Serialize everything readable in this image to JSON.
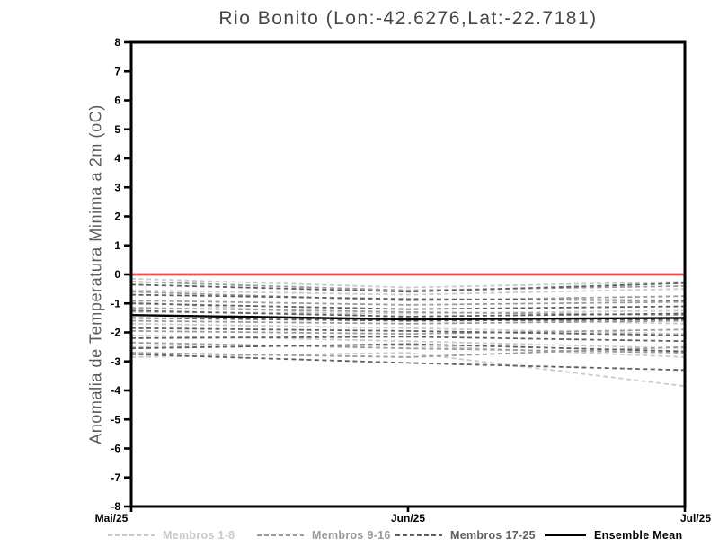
{
  "chart_data": {
    "type": "line",
    "title": "Rio Bonito (Lon:-42.6276,Lat:-22.7181)",
    "ylabel": "Anomalia de Temperatura Minima a 2m (oC)",
    "x_tick_labels": [
      "Mai/25",
      "Jun/25",
      "Jul/25"
    ],
    "ylim": [
      -8,
      8
    ],
    "y_tick_step": 1,
    "grid": false,
    "legend_position": "bottom",
    "axis_color": "#000000",
    "zero_line": {
      "value": 0,
      "color": "#f54848"
    },
    "groups": [
      {
        "label": "Membros 1-8",
        "color": "#c9c9c9",
        "line_style": "dashed",
        "series": [
          [
            -0.15,
            -0.45,
            -0.25
          ],
          [
            -0.55,
            -0.7,
            -0.5
          ],
          [
            -0.95,
            -1.5,
            -1.7
          ],
          [
            -1.3,
            -1.35,
            -1.25
          ],
          [
            -1.7,
            -1.85,
            -2.05
          ],
          [
            -2.1,
            -2.3,
            -2.55
          ],
          [
            -2.5,
            -2.45,
            -2.85
          ],
          [
            -2.85,
            -2.7,
            -3.85
          ]
        ]
      },
      {
        "label": "Membros 9-16",
        "color": "#9a9a9a",
        "line_style": "dashed",
        "series": [
          [
            -0.25,
            -0.55,
            -0.4
          ],
          [
            -0.6,
            -0.9,
            -0.75
          ],
          [
            -0.9,
            -1.05,
            -0.95
          ],
          [
            -1.15,
            -1.3,
            -1.4
          ],
          [
            -1.6,
            -1.7,
            -1.6
          ],
          [
            -1.95,
            -2.05,
            -1.9
          ],
          [
            -2.35,
            -2.55,
            -2.7
          ],
          [
            -2.7,
            -2.85,
            -2.5
          ]
        ]
      },
      {
        "label": "Membros 17-25",
        "color": "#5e5e5e",
        "line_style": "dashed",
        "series": [
          [
            -0.35,
            -0.6,
            -0.3
          ],
          [
            -0.7,
            -0.85,
            -0.9
          ],
          [
            -1.0,
            -1.2,
            -1.1
          ],
          [
            -1.25,
            -1.45,
            -1.35
          ],
          [
            -1.5,
            -1.6,
            -1.55
          ],
          [
            -1.85,
            -1.95,
            -2.1
          ],
          [
            -2.2,
            -2.15,
            -2.3
          ],
          [
            -2.55,
            -2.4,
            -2.65
          ],
          [
            -2.75,
            -3.05,
            -3.3
          ]
        ]
      }
    ],
    "ensemble_mean": {
      "label": "Ensemble Mean",
      "color": "#000000",
      "line_style": "solid",
      "values": [
        -1.4,
        -1.55,
        -1.5
      ]
    }
  }
}
